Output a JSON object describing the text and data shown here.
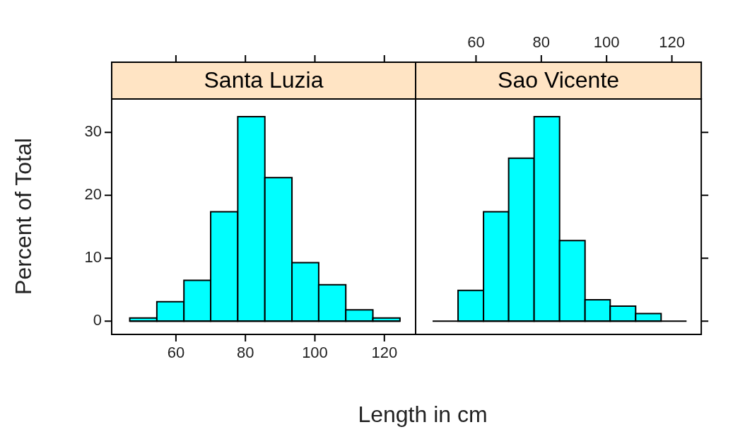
{
  "chart_data": [
    {
      "type": "histogram",
      "title": "Santa Luzia",
      "ylabel": "Percent of Total",
      "xlabel": "Length in cm",
      "color": "#00ffff",
      "bins": [
        46.7,
        54.5,
        62.3,
        70.0,
        77.8,
        85.6,
        93.4,
        101.1,
        108.9,
        116.7,
        124.5
      ],
      "values": [
        0.5,
        3.1,
        6.5,
        17.4,
        32.5,
        22.8,
        9.3,
        5.8,
        1.8,
        0.5
      ],
      "xlim": [
        41.5,
        129
      ],
      "xticks": [
        60,
        80,
        100,
        120
      ],
      "ylim": [
        -2.1,
        35.3
      ],
      "yticks": [
        0,
        10,
        20,
        30
      ]
    },
    {
      "type": "histogram",
      "title": "Sao Vicente",
      "color": "#00ffff",
      "bins": [
        46.7,
        54.5,
        62.3,
        70.0,
        77.8,
        85.6,
        93.4,
        101.1,
        108.9,
        116.7,
        124.5
      ],
      "values": [
        0,
        4.9,
        17.4,
        25.9,
        32.5,
        12.8,
        3.4,
        2.4,
        1.2,
        0
      ],
      "xlim": [
        41.5,
        129
      ],
      "xticks": [
        60,
        80,
        100,
        120
      ],
      "ylim": [
        -2.1,
        35.3
      ],
      "yticks": [
        0,
        10,
        20,
        30
      ],
      "tick_labels": "x"
    }
  ]
}
